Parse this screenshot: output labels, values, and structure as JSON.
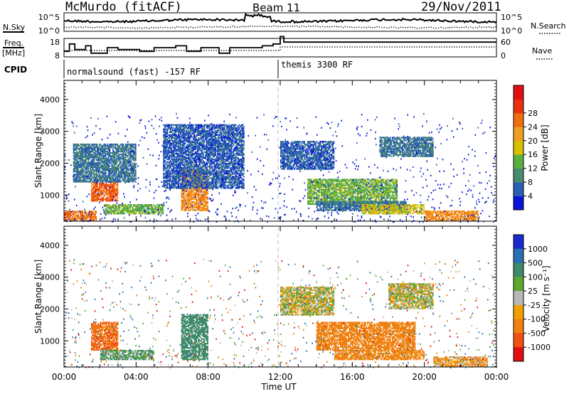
{
  "header": {
    "station": "McMurdo (fitACF)",
    "beam": "Beam 11",
    "date": "29/Nov/2011"
  },
  "noise_panel": {
    "left_label": "N.Sky",
    "right_label": "N.Search",
    "left_ticks": [
      "10^5",
      "10^0"
    ],
    "right_ticks": [
      "10^5",
      "10^0"
    ]
  },
  "freq_panel": {
    "left_label_1": "Freq.",
    "left_label_2": "[MHz]",
    "right_label": "Nave",
    "left_ticks": [
      "18",
      "8"
    ],
    "right_ticks": [
      "60",
      "0"
    ]
  },
  "cpid": {
    "label": "CPID",
    "mode_1": "normalsound (fast) -157 RF",
    "mode_2": "themis 3300 RF"
  },
  "power_panel": {
    "ylabel": "Slant Range [km]",
    "yticks": [
      "1000",
      "2000",
      "3000",
      "4000"
    ],
    "colorbar_label": "Power [dB]",
    "colorbar_ticks": [
      "4",
      "8",
      "12",
      "16",
      "20",
      "24",
      "28"
    ],
    "colorbar_colors": [
      "#0a14d8",
      "#2a5fb5",
      "#4a8a70",
      "#58b040",
      "#d8c000",
      "#f0a020",
      "#f07010",
      "#e83010",
      "#e01010"
    ]
  },
  "velocity_panel": {
    "ylabel": "Slant Range [km]",
    "yticks": [
      "1000",
      "2000",
      "3000",
      "4000"
    ],
    "colorbar_label": "Velocity [m s⁻¹]",
    "colorbar_ticks": [
      "1000",
      "500",
      "100",
      "25",
      "-25",
      "-100",
      "-500",
      "-1000"
    ],
    "colorbar_colors": [
      "#1a2ad0",
      "#2a6fb0",
      "#3f8a6a",
      "#5aa830",
      "#b8b8b8",
      "#f0a000",
      "#f08010",
      "#f05010",
      "#e01010"
    ]
  },
  "xaxis": {
    "label": "Time UT",
    "ticks": [
      "00:00",
      "04:00",
      "08:00",
      "12:00",
      "16:00",
      "20:00",
      "00:00"
    ]
  },
  "chart_data": {
    "type": "heatmap",
    "x_range_hours": [
      0,
      24
    ],
    "y_range_km": [
      180,
      4600
    ],
    "mode_change_hour": 12,
    "power_regions": [
      {
        "t0": 0.0,
        "t1": 1.8,
        "r0": 200,
        "r1": 500,
        "db": 26
      },
      {
        "t0": 1.5,
        "t1": 3.0,
        "r0": 800,
        "r1": 1400,
        "db": 27
      },
      {
        "t0": 2.2,
        "t1": 5.5,
        "r0": 400,
        "r1": 700,
        "db": 14
      },
      {
        "t0": 0.5,
        "t1": 4.0,
        "r0": 1400,
        "r1": 2600,
        "db": 8
      },
      {
        "t0": 6.5,
        "t1": 8.0,
        "r0": 500,
        "r1": 1800,
        "db": 24
      },
      {
        "t0": 5.5,
        "t1": 10.0,
        "r0": 1200,
        "r1": 3200,
        "db": 6
      },
      {
        "t0": 13.5,
        "t1": 18.5,
        "r0": 700,
        "r1": 1500,
        "db": 14
      },
      {
        "t0": 14.0,
        "t1": 19.0,
        "r0": 500,
        "r1": 800,
        "db": 8
      },
      {
        "t0": 16.5,
        "t1": 20.0,
        "r0": 400,
        "r1": 700,
        "db": 18
      },
      {
        "t0": 20.0,
        "t1": 23.0,
        "r0": 200,
        "r1": 500,
        "db": 24
      },
      {
        "t0": 17.5,
        "t1": 20.5,
        "r0": 2200,
        "r1": 2800,
        "db": 8
      },
      {
        "t0": 12.0,
        "t1": 15.0,
        "r0": 1800,
        "r1": 2700,
        "db": 6
      }
    ],
    "velocity_regions": [
      {
        "t0": 1.5,
        "t1": 3.0,
        "r0": 700,
        "r1": 1600,
        "v": -500
      },
      {
        "t0": 2.0,
        "t1": 5.0,
        "r0": 400,
        "r1": 700,
        "v": 100
      },
      {
        "t0": 6.5,
        "t1": 8.0,
        "r0": 400,
        "r1": 1800,
        "v": 300
      },
      {
        "t0": 14.0,
        "t1": 19.5,
        "r0": 700,
        "r1": 1600,
        "v": -300
      },
      {
        "t0": 15.0,
        "t1": 20.0,
        "r0": 400,
        "r1": 700,
        "v": -200
      },
      {
        "t0": 18.0,
        "t1": 20.5,
        "r0": 2000,
        "r1": 2800,
        "v": 0
      },
      {
        "t0": 12.0,
        "t1": 15.0,
        "r0": 1800,
        "r1": 2700,
        "v": 0
      },
      {
        "t0": 20.5,
        "t1": 23.5,
        "r0": 200,
        "r1": 500,
        "v": -100
      }
    ]
  }
}
